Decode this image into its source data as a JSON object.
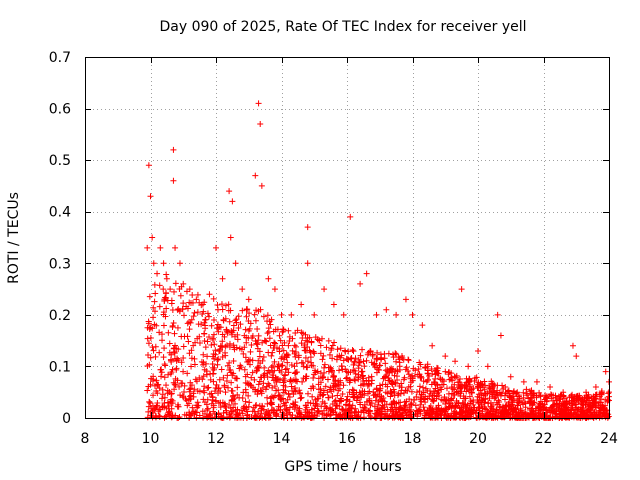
{
  "chart_data": {
    "type": "scatter",
    "title": "Day 090 of 2025, Rate Of TEC Index for receiver yell",
    "xlabel": "GPS time / hours",
    "ylabel": "ROTI / TECUs",
    "xlim": [
      8,
      24
    ],
    "ylim": [
      0,
      0.7
    ],
    "xticks": [
      8,
      10,
      12,
      14,
      16,
      18,
      20,
      22,
      24
    ],
    "xtick_labels": [
      "8",
      "10",
      "12",
      "14",
      "16",
      "18",
      "20",
      "22",
      "24"
    ],
    "yticks": [
      0,
      0.1,
      0.2,
      0.3,
      0.4,
      0.5,
      0.6,
      0.7
    ],
    "ytick_labels": [
      "0",
      "0.1",
      "0.2",
      "0.3",
      "0.4",
      "0.5",
      "0.6",
      "0.7"
    ],
    "grid": true,
    "marker": "+",
    "color": "#ff0000",
    "data_start_hour": 9.9,
    "data_end_hour": 24.0,
    "series": [
      {
        "name": "ROTI",
        "x": [
          9.9,
          9.95,
          10.0,
          10.05,
          10.1,
          10.2,
          10.3,
          10.4,
          10.5,
          10.6,
          10.7,
          10.7,
          10.75,
          10.9,
          11.0,
          11.2,
          11.4,
          11.6,
          11.8,
          12.0,
          12.2,
          12.4,
          12.45,
          12.5,
          12.6,
          12.8,
          13.0,
          13.2,
          13.3,
          13.35,
          13.4,
          13.6,
          13.8,
          14.0,
          14.3,
          14.6,
          14.8,
          14.8,
          15.0,
          15.3,
          15.6,
          15.9,
          16.1,
          16.4,
          16.6,
          16.9,
          17.2,
          17.5,
          17.8,
          18.0,
          18.3,
          18.6,
          19.0,
          19.3,
          19.5,
          19.7,
          20.0,
          20.3,
          20.6,
          20.7,
          21.0,
          21.4,
          21.8,
          22.2,
          22.6,
          22.9,
          23.0,
          23.3,
          23.6,
          23.9,
          24.0
        ],
        "y": [
          0.33,
          0.49,
          0.43,
          0.35,
          0.3,
          0.28,
          0.33,
          0.3,
          0.27,
          0.25,
          0.52,
          0.46,
          0.33,
          0.3,
          0.26,
          0.25,
          0.23,
          0.22,
          0.24,
          0.33,
          0.27,
          0.44,
          0.35,
          0.42,
          0.3,
          0.25,
          0.23,
          0.47,
          0.61,
          0.57,
          0.45,
          0.27,
          0.25,
          0.2,
          0.2,
          0.22,
          0.37,
          0.3,
          0.2,
          0.25,
          0.22,
          0.2,
          0.39,
          0.26,
          0.28,
          0.2,
          0.21,
          0.2,
          0.23,
          0.2,
          0.18,
          0.14,
          0.12,
          0.11,
          0.25,
          0.1,
          0.13,
          0.1,
          0.2,
          0.16,
          0.08,
          0.07,
          0.07,
          0.06,
          0.05,
          0.14,
          0.12,
          0.05,
          0.06,
          0.09,
          0.07
        ]
      }
    ],
    "density_envelope": {
      "hours": [
        9.9,
        10.2,
        10.6,
        11.0,
        11.5,
        12.0,
        12.5,
        13.0,
        13.5,
        14.0,
        14.5,
        15.0,
        15.5,
        16.0,
        16.5,
        17.0,
        17.5,
        18.0,
        18.5,
        19.0,
        19.5,
        20.0,
        20.5,
        21.0,
        21.5,
        22.0,
        22.5,
        23.0,
        23.5,
        24.0
      ],
      "typical_max": [
        0.2,
        0.25,
        0.24,
        0.23,
        0.21,
        0.2,
        0.2,
        0.19,
        0.18,
        0.15,
        0.15,
        0.14,
        0.13,
        0.12,
        0.12,
        0.11,
        0.11,
        0.1,
        0.09,
        0.08,
        0.07,
        0.07,
        0.06,
        0.05,
        0.05,
        0.04,
        0.04,
        0.04,
        0.04,
        0.05
      ]
    }
  }
}
